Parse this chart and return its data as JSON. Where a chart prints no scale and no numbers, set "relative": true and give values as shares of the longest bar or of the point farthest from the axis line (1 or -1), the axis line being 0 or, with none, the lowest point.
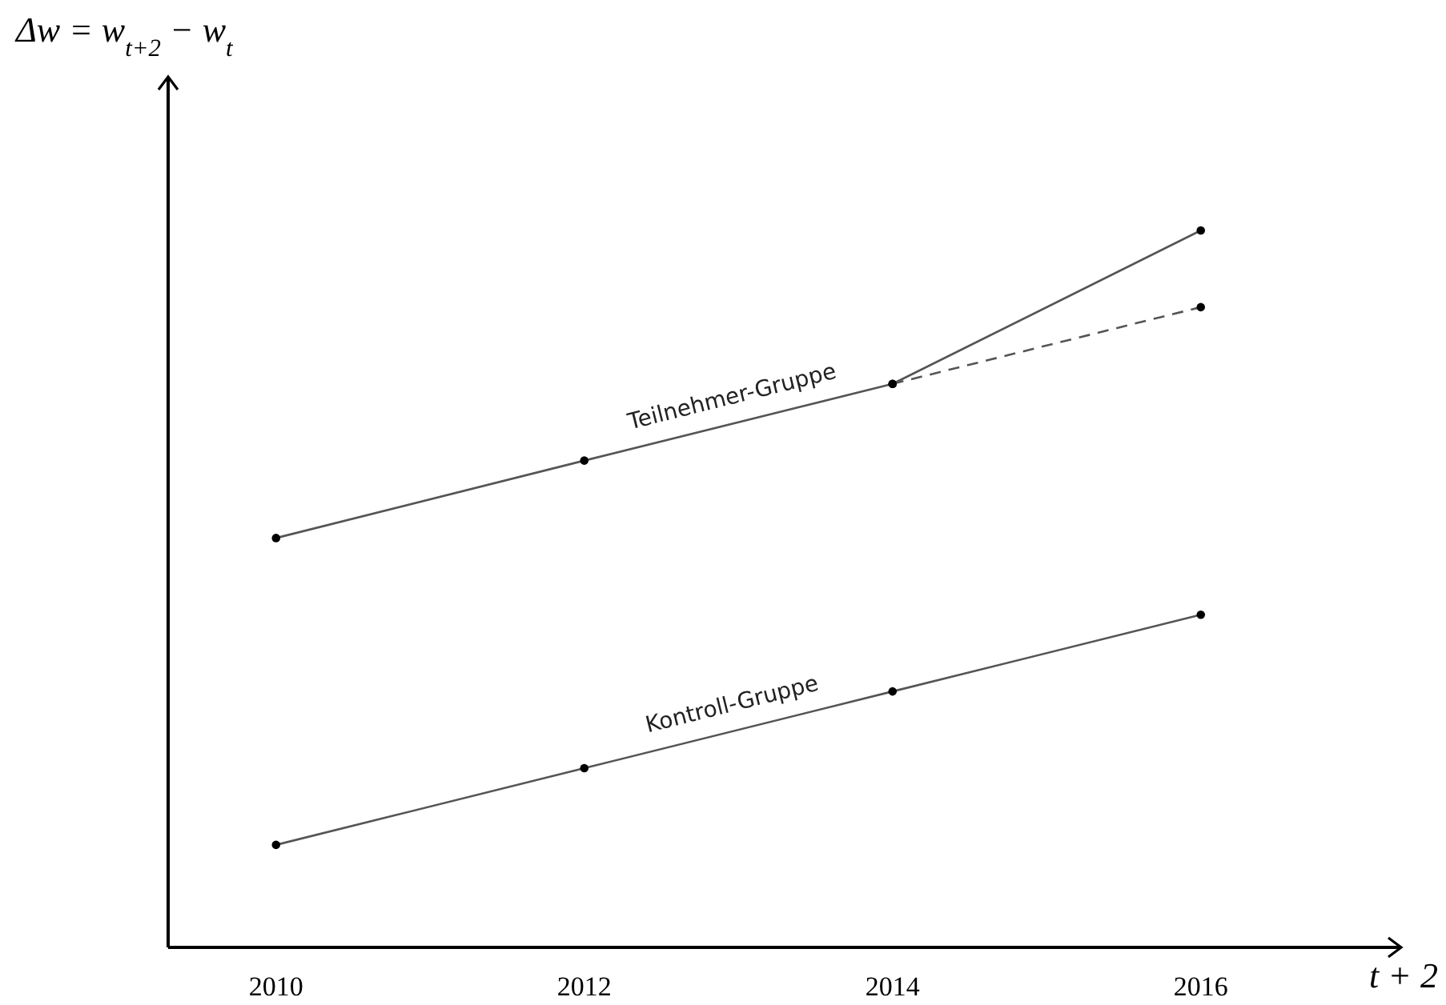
{
  "chart_data": {
    "type": "line",
    "relative": true,
    "xlabel": "t + 2",
    "ylabel": "Δw = w$_{t+2}$ − w$_{t}$",
    "xlim": [
      2009.3,
      2017.3
    ],
    "xticks": [
      2010,
      2012,
      2014,
      2016
    ],
    "grid": false,
    "legend": false,
    "marker": "circle",
    "series": [
      {
        "name": "Teilnehmer-Gruppe",
        "color": "#555555",
        "x": [
          2010,
          2012,
          2014,
          2016
        ],
        "values": [
          0.571,
          0.679,
          0.786,
          1
        ]
      },
      {
        "color": "#555555",
        "line_style": "dashed",
        "x": [
          2014,
          2016
        ],
        "values": [
          0.786,
          0.893
        ]
      },
      {
        "name": "Kontroll-Gruppe",
        "color": "#555555",
        "x": [
          2010,
          2012,
          2014,
          2016
        ],
        "values": [
          0.143,
          0.25,
          0.357,
          0.464
        ]
      }
    ]
  }
}
